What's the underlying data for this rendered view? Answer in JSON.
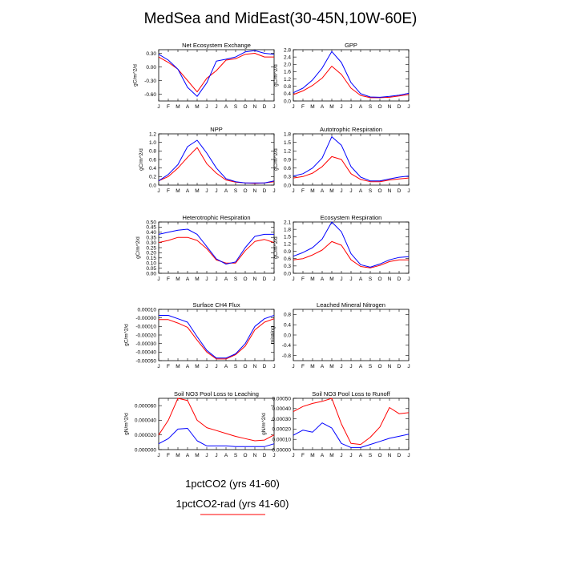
{
  "title": "MedSea and MidEast(30-45N,10W-60E)",
  "colors": {
    "series1": "#0000ff",
    "series2": "#ff0000",
    "axis": "#000000"
  },
  "legend": [
    {
      "label": "1pctCO2 (yrs 41-60)",
      "color": "#0000ff"
    },
    {
      "label": "1pctCO2-rad (yrs 41-60)",
      "color": "#ff0000"
    }
  ],
  "chart_data": [
    {
      "type": "line",
      "title": "Net Ecosystem Exchange",
      "ylabel": "gC/m^2/d",
      "x": [
        "J",
        "F",
        "M",
        "A",
        "M",
        "J",
        "J",
        "A",
        "S",
        "O",
        "N",
        "D",
        "J"
      ],
      "ylim": [
        -0.75,
        0.38
      ],
      "yticks": [
        0.3,
        0.0,
        -0.3,
        -0.6
      ],
      "yticklabels": [
        "0.30",
        "0.00",
        "-0.30",
        "-0.60"
      ],
      "series": [
        {
          "values": [
            0.28,
            0.15,
            -0.05,
            -0.45,
            -0.65,
            -0.35,
            0.13,
            0.17,
            0.22,
            0.33,
            0.36,
            0.3,
            0.28
          ]
        },
        {
          "values": [
            0.22,
            0.1,
            -0.05,
            -0.3,
            -0.55,
            -0.25,
            -0.08,
            0.15,
            0.18,
            0.28,
            0.3,
            0.22,
            0.22
          ]
        }
      ]
    },
    {
      "type": "line",
      "title": "GPP",
      "ylabel": "gC/m^2/d",
      "x": [
        "J",
        "F",
        "M",
        "A",
        "M",
        "J",
        "J",
        "A",
        "S",
        "O",
        "N",
        "D",
        "J"
      ],
      "ylim": [
        0,
        2.8
      ],
      "yticks": [
        0.0,
        0.4,
        0.8,
        1.2,
        1.6,
        2.0,
        2.4,
        2.8
      ],
      "yticklabels": [
        "0.0",
        "0.4",
        "0.8",
        "1.2",
        "1.6",
        "2.0",
        "2.4",
        "2.8"
      ],
      "series": [
        {
          "values": [
            0.45,
            0.7,
            1.15,
            1.8,
            2.7,
            2.1,
            1.0,
            0.4,
            0.22,
            0.2,
            0.25,
            0.32,
            0.42
          ]
        },
        {
          "values": [
            0.35,
            0.55,
            0.85,
            1.25,
            1.9,
            1.45,
            0.7,
            0.3,
            0.18,
            0.18,
            0.2,
            0.27,
            0.35
          ]
        }
      ]
    },
    {
      "type": "line",
      "title": "NPP",
      "ylabel": "gC/m^2/d",
      "x": [
        "J",
        "F",
        "M",
        "A",
        "M",
        "J",
        "J",
        "A",
        "S",
        "O",
        "N",
        "D",
        "J"
      ],
      "ylim": [
        0,
        1.2
      ],
      "yticks": [
        0.0,
        0.2,
        0.4,
        0.6,
        0.8,
        1.0,
        1.2
      ],
      "yticklabels": [
        "0.0",
        "0.2",
        "0.4",
        "0.6",
        "0.8",
        "1.0",
        "1.2"
      ],
      "series": [
        {
          "values": [
            0.1,
            0.25,
            0.48,
            0.9,
            1.05,
            0.75,
            0.4,
            0.15,
            0.08,
            0.05,
            0.05,
            0.05,
            0.1
          ]
        },
        {
          "values": [
            0.1,
            0.2,
            0.4,
            0.65,
            0.88,
            0.5,
            0.28,
            0.12,
            0.07,
            0.05,
            0.04,
            0.05,
            0.08
          ]
        }
      ]
    },
    {
      "type": "line",
      "title": "Autotrophic Respiration",
      "ylabel": "gC/m^2/d",
      "x": [
        "J",
        "F",
        "M",
        "A",
        "M",
        "J",
        "J",
        "A",
        "S",
        "O",
        "N",
        "D",
        "J"
      ],
      "ylim": [
        0,
        1.8
      ],
      "yticks": [
        0.0,
        0.3,
        0.6,
        0.9,
        1.2,
        1.5,
        1.8
      ],
      "yticklabels": [
        "0.0",
        "0.3",
        "0.6",
        "0.9",
        "1.2",
        "1.5",
        "1.8"
      ],
      "series": [
        {
          "values": [
            0.32,
            0.4,
            0.6,
            0.95,
            1.7,
            1.4,
            0.65,
            0.28,
            0.15,
            0.15,
            0.22,
            0.28,
            0.32
          ]
        },
        {
          "values": [
            0.25,
            0.3,
            0.42,
            0.65,
            1.0,
            0.9,
            0.4,
            0.2,
            0.12,
            0.12,
            0.18,
            0.22,
            0.25
          ]
        }
      ]
    },
    {
      "type": "line",
      "title": "Heterotrophic Respiration",
      "ylabel": "gC/m^2/d",
      "x": [
        "J",
        "F",
        "M",
        "A",
        "M",
        "J",
        "J",
        "A",
        "S",
        "O",
        "N",
        "D",
        "J"
      ],
      "ylim": [
        0,
        0.5
      ],
      "yticks": [
        0.0,
        0.05,
        0.1,
        0.15,
        0.2,
        0.25,
        0.3,
        0.35,
        0.4,
        0.45,
        0.5
      ],
      "yticklabels": [
        "0.00",
        "0.05",
        "0.10",
        "0.15",
        "0.20",
        "0.25",
        "0.30",
        "0.35",
        "0.40",
        "0.45",
        "0.50"
      ],
      "series": [
        {
          "values": [
            0.38,
            0.4,
            0.42,
            0.43,
            0.38,
            0.26,
            0.14,
            0.09,
            0.11,
            0.25,
            0.36,
            0.38,
            0.38
          ]
        },
        {
          "values": [
            0.3,
            0.32,
            0.35,
            0.35,
            0.32,
            0.24,
            0.13,
            0.1,
            0.1,
            0.22,
            0.31,
            0.33,
            0.3
          ]
        }
      ]
    },
    {
      "type": "line",
      "title": "Ecosystem Respiration",
      "ylabel": "gC/m^2/d",
      "x": [
        "J",
        "F",
        "M",
        "A",
        "M",
        "J",
        "J",
        "A",
        "S",
        "O",
        "N",
        "D",
        "J"
      ],
      "ylim": [
        0,
        2.1
      ],
      "yticks": [
        0.0,
        0.3,
        0.6,
        0.9,
        1.2,
        1.5,
        1.8,
        2.1
      ],
      "yticklabels": [
        "0.0",
        "0.3",
        "0.6",
        "0.9",
        "1.2",
        "1.5",
        "1.8",
        "2.1"
      ],
      "series": [
        {
          "values": [
            0.7,
            0.85,
            1.05,
            1.4,
            2.1,
            1.7,
            0.8,
            0.35,
            0.25,
            0.38,
            0.55,
            0.65,
            0.68
          ]
        },
        {
          "values": [
            0.55,
            0.6,
            0.75,
            0.95,
            1.3,
            1.15,
            0.55,
            0.28,
            0.22,
            0.32,
            0.48,
            0.55,
            0.55
          ]
        }
      ]
    },
    {
      "type": "line",
      "title": "Surface CH4 Flux",
      "ylabel": "gC/m^2/d",
      "x": [
        "J",
        "F",
        "M",
        "A",
        "M",
        "J",
        "J",
        "A",
        "S",
        "O",
        "N",
        "D",
        "J"
      ],
      "ylim": [
        -0.0005,
        0.0001
      ],
      "yticks": [
        0.0001,
        0.0,
        -0.0001,
        -0.0002,
        -0.0003,
        -0.0004,
        -0.0005
      ],
      "yticklabels": [
        "0.00010",
        "-0.00000",
        "-0.00010",
        "-0.00020",
        "-0.00030",
        "-0.00040",
        "-0.00050"
      ],
      "series": [
        {
          "values": [
            3e-05,
            3e-05,
            -1e-05,
            -5e-05,
            -0.00022,
            -0.00038,
            -0.00047,
            -0.00047,
            -0.00042,
            -0.0003,
            -0.0001,
            -1e-05,
            3e-05
          ]
        },
        {
          "values": [
            -2e-05,
            -2e-05,
            -6e-05,
            -0.00011,
            -0.00026,
            -0.0004,
            -0.00048,
            -0.00048,
            -0.00043,
            -0.00033,
            -0.00014,
            -5e-05,
            -1e-05
          ]
        }
      ]
    },
    {
      "type": "line",
      "title": "Leached Mineral Nitrogen",
      "ylabel": "missing",
      "x": [
        "J",
        "F",
        "M",
        "A",
        "M",
        "J",
        "J",
        "A",
        "S",
        "O",
        "N",
        "D",
        "J"
      ],
      "ylim": [
        -1,
        1
      ],
      "yticks": [
        0.8,
        0.4,
        0.0,
        -0.4,
        -0.8
      ],
      "yticklabels": [
        "0.8",
        "0.4",
        "0.0",
        "-0.4",
        "-0.8"
      ],
      "series": []
    },
    {
      "type": "line",
      "title": "Soil NO3 Pool Loss to Leaching",
      "ylabel": "gN/m^2/d",
      "x": [
        "J",
        "F",
        "M",
        "A",
        "M",
        "J",
        "J",
        "A",
        "S",
        "O",
        "N",
        "D",
        "J"
      ],
      "ylim": [
        0,
        7e-05
      ],
      "yticks": [
        0.0,
        2e-05,
        4e-05,
        6e-05
      ],
      "yticklabels": [
        "0.000000",
        "0.000020",
        "0.000040",
        "0.000060"
      ],
      "series": [
        {
          "values": [
            8e-06,
            1.5e-05,
            2.8e-05,
            2.9e-05,
            1.2e-05,
            5e-06,
            5e-06,
            5e-06,
            4e-06,
            4e-06,
            4e-06,
            4e-06,
            8e-06
          ]
        },
        {
          "values": [
            2e-05,
            4e-05,
            7e-05,
            6.7e-05,
            4e-05,
            3e-05,
            2.6e-05,
            2.2e-05,
            1.8e-05,
            1.5e-05,
            1.2e-05,
            1.3e-05,
            2e-05
          ]
        }
      ]
    },
    {
      "type": "line",
      "title": "Soil NO3 Pool Loss to Runoff",
      "ylabel": "gN/m^2/d",
      "x": [
        "J",
        "F",
        "M",
        "A",
        "M",
        "J",
        "J",
        "A",
        "S",
        "O",
        "N",
        "D",
        "J"
      ],
      "ylim": [
        0,
        0.0005
      ],
      "yticks": [
        0.0,
        0.0001,
        0.0002,
        0.0003,
        0.0004,
        0.0005
      ],
      "yticklabels": [
        "0.00000",
        "0.00010",
        "0.00020",
        "0.00030",
        "0.00040",
        "0.00050"
      ],
      "series": [
        {
          "values": [
            0.00014,
            0.00019,
            0.00017,
            0.00026,
            0.00021,
            6e-05,
            2e-05,
            2e-05,
            5e-05,
            8e-05,
            0.00011,
            0.00013,
            0.00015
          ]
        },
        {
          "values": [
            0.00037,
            0.00042,
            0.00045,
            0.00047,
            0.0005,
            0.00025,
            6e-05,
            5e-05,
            0.00012,
            0.00022,
            0.00041,
            0.00035,
            0.00036
          ]
        }
      ]
    }
  ]
}
